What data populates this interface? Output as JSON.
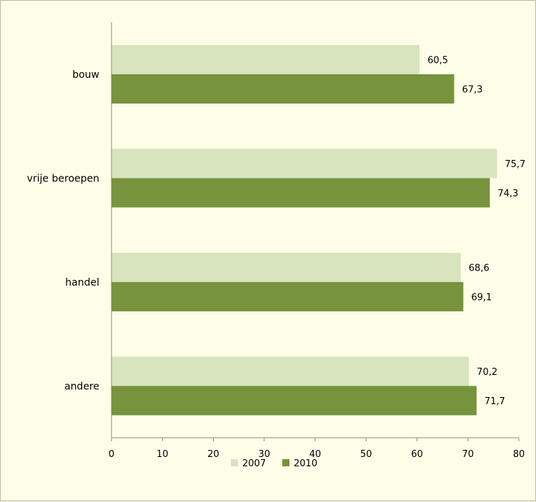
{
  "chart_data": {
    "type": "bar",
    "orientation": "horizontal",
    "categories": [
      "bouw",
      "vrije beroepen",
      "handel",
      "andere"
    ],
    "series": [
      {
        "name": "2007",
        "values": [
          60.5,
          75.7,
          68.6,
          70.2
        ],
        "labels": [
          "60,5",
          "75,7",
          "68,6",
          "70,2"
        ],
        "color": "#d7e4bd"
      },
      {
        "name": "2010",
        "values": [
          67.3,
          74.3,
          69.1,
          71.7
        ],
        "labels": [
          "67,3",
          "74,3",
          "69,1",
          "71,7"
        ],
        "color": "#77933c"
      }
    ],
    "xlim": [
      0,
      80
    ],
    "ticks": [
      "0",
      "10",
      "20",
      "30",
      "40",
      "50",
      "60",
      "70",
      "80"
    ],
    "grid": false,
    "legend": "bottom",
    "background": "#fefee8"
  }
}
